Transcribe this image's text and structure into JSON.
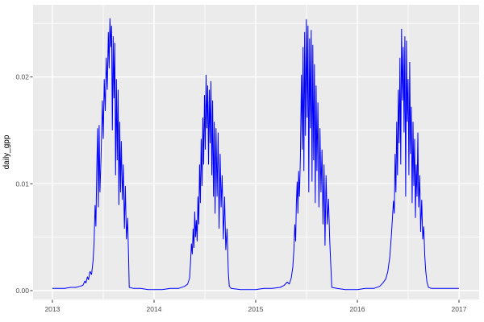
{
  "styles": {
    "outer_bg": "#ffffff",
    "panel_bg": "#ebebeb",
    "grid_color": "#ffffff",
    "line_color": "#0000ff",
    "tick_text_color": "#4d4d4d",
    "axis_title_color": "#000000",
    "tick_mark_color": "#333333"
  },
  "chart_data": {
    "type": "line",
    "title": "",
    "xlabel": "",
    "ylabel": "daily_gpp",
    "theme": "ggplot2-grey",
    "legend": "none",
    "grid": "white major and minor gridlines on grey panel",
    "x_tick_values": [
      2013,
      2014,
      2015,
      2016,
      2017
    ],
    "x_tick_labels": [
      "2013",
      "2014",
      "2015",
      "2016",
      "2017"
    ],
    "x_minor_values": [
      2013.5,
      2014.5,
      2015.5,
      2016.5
    ],
    "y_tick_values": [
      0.0,
      0.01,
      0.02
    ],
    "y_tick_labels": [
      "0.00",
      "0.01",
      "0.02"
    ],
    "y_minor_values": [
      0.005,
      0.015,
      0.025
    ],
    "xlim": [
      2012.81,
      2017.198
    ],
    "ylim": [
      -0.00083,
      0.02675
    ],
    "series": [
      {
        "name": "daily_gpp",
        "color": "#0000ff",
        "points": [
          [
            2013.0,
            0.0002
          ],
          [
            2013.06,
            0.0002
          ],
          [
            2013.12,
            0.0002
          ],
          [
            2013.18,
            0.0003
          ],
          [
            2013.23,
            0.0003
          ],
          [
            2013.27,
            0.0004
          ],
          [
            2013.3,
            0.0005
          ],
          [
            2013.32,
            0.0009
          ],
          [
            2013.33,
            0.0007
          ],
          [
            2013.345,
            0.0013
          ],
          [
            2013.355,
            0.001
          ],
          [
            2013.37,
            0.0018
          ],
          [
            2013.385,
            0.0015
          ],
          [
            2013.4,
            0.0028
          ],
          [
            2013.41,
            0.0045
          ],
          [
            2013.42,
            0.008
          ],
          [
            2013.428,
            0.006
          ],
          [
            2013.437,
            0.0115
          ],
          [
            2013.445,
            0.0152
          ],
          [
            2013.452,
            0.0078
          ],
          [
            2013.46,
            0.0155
          ],
          [
            2013.468,
            0.0092
          ],
          [
            2013.48,
            0.0128
          ],
          [
            2013.492,
            0.0178
          ],
          [
            2013.5,
            0.0142
          ],
          [
            2013.51,
            0.0198
          ],
          [
            2013.52,
            0.0168
          ],
          [
            2013.53,
            0.0218
          ],
          [
            2013.54,
            0.0188
          ],
          [
            2013.55,
            0.0242
          ],
          [
            2013.558,
            0.0208
          ],
          [
            2013.566,
            0.0255
          ],
          [
            2013.574,
            0.0228
          ],
          [
            2013.582,
            0.0248
          ],
          [
            2013.59,
            0.015
          ],
          [
            2013.598,
            0.0238
          ],
          [
            2013.606,
            0.018
          ],
          [
            2013.614,
            0.0232
          ],
          [
            2013.622,
            0.0108
          ],
          [
            2013.63,
            0.0198
          ],
          [
            2013.638,
            0.0122
          ],
          [
            2013.646,
            0.0188
          ],
          [
            2013.654,
            0.008
          ],
          [
            2013.662,
            0.0158
          ],
          [
            2013.67,
            0.0092
          ],
          [
            2013.678,
            0.014
          ],
          [
            2013.688,
            0.0085
          ],
          [
            2013.698,
            0.0118
          ],
          [
            2013.708,
            0.0058
          ],
          [
            2013.718,
            0.0098
          ],
          [
            2013.728,
            0.0048
          ],
          [
            2013.74,
            0.0068
          ],
          [
            2013.75,
            0.0028
          ],
          [
            2013.756,
            0.0003
          ],
          [
            2013.8,
            0.0002
          ],
          [
            2013.87,
            0.0002
          ],
          [
            2013.94,
            0.0001
          ],
          [
            2014.0,
            0.0001
          ],
          [
            2014.08,
            0.0001
          ],
          [
            2014.16,
            0.0002
          ],
          [
            2014.24,
            0.0002
          ],
          [
            2014.3,
            0.0004
          ],
          [
            2014.33,
            0.0006
          ],
          [
            2014.35,
            0.0012
          ],
          [
            2014.36,
            0.0028
          ],
          [
            2014.368,
            0.0044
          ],
          [
            2014.376,
            0.0034
          ],
          [
            2014.384,
            0.0058
          ],
          [
            2014.392,
            0.004
          ],
          [
            2014.4,
            0.0074
          ],
          [
            2014.408,
            0.005
          ],
          [
            2014.416,
            0.0066
          ],
          [
            2014.424,
            0.0046
          ],
          [
            2014.432,
            0.0088
          ],
          [
            2014.44,
            0.0062
          ],
          [
            2014.448,
            0.0118
          ],
          [
            2014.456,
            0.0082
          ],
          [
            2014.464,
            0.0142
          ],
          [
            2014.472,
            0.0098
          ],
          [
            2014.48,
            0.0162
          ],
          [
            2014.488,
            0.0118
          ],
          [
            2014.496,
            0.0183
          ],
          [
            2014.504,
            0.0132
          ],
          [
            2014.512,
            0.0202
          ],
          [
            2014.52,
            0.0152
          ],
          [
            2014.528,
            0.0192
          ],
          [
            2014.536,
            0.0118
          ],
          [
            2014.544,
            0.0188
          ],
          [
            2014.552,
            0.0138
          ],
          [
            2014.56,
            0.0196
          ],
          [
            2014.568,
            0.0108
          ],
          [
            2014.576,
            0.0178
          ],
          [
            2014.584,
            0.0088
          ],
          [
            2014.592,
            0.0158
          ],
          [
            2014.6,
            0.0072
          ],
          [
            2014.61,
            0.0152
          ],
          [
            2014.62,
            0.0088
          ],
          [
            2014.63,
            0.0148
          ],
          [
            2014.64,
            0.0058
          ],
          [
            2014.65,
            0.0128
          ],
          [
            2014.66,
            0.0078
          ],
          [
            2014.67,
            0.0108
          ],
          [
            2014.682,
            0.0048
          ],
          [
            2014.694,
            0.0088
          ],
          [
            2014.706,
            0.0038
          ],
          [
            2014.718,
            0.0058
          ],
          [
            2014.73,
            0.0018
          ],
          [
            2014.74,
            0.0004
          ],
          [
            2014.76,
            0.0002
          ],
          [
            2014.85,
            0.0001
          ],
          [
            2014.94,
            0.0001
          ],
          [
            2015.0,
            0.0001
          ],
          [
            2015.08,
            0.0002
          ],
          [
            2015.16,
            0.0002
          ],
          [
            2015.24,
            0.0003
          ],
          [
            2015.28,
            0.0005
          ],
          [
            2015.31,
            0.0008
          ],
          [
            2015.33,
            0.0006
          ],
          [
            2015.35,
            0.0012
          ],
          [
            2015.365,
            0.0022
          ],
          [
            2015.375,
            0.0038
          ],
          [
            2015.385,
            0.0062
          ],
          [
            2015.393,
            0.0046
          ],
          [
            2015.4,
            0.0082
          ],
          [
            2015.408,
            0.0102
          ],
          [
            2015.415,
            0.0072
          ],
          [
            2015.422,
            0.0112
          ],
          [
            2015.43,
            0.0088
          ],
          [
            2015.44,
            0.0125
          ],
          [
            2015.45,
            0.0202
          ],
          [
            2015.458,
            0.0132
          ],
          [
            2015.466,
            0.0228
          ],
          [
            2015.474,
            0.0112
          ],
          [
            2015.482,
            0.0242
          ],
          [
            2015.49,
            0.0145
          ],
          [
            2015.498,
            0.0254
          ],
          [
            2015.506,
            0.0162
          ],
          [
            2015.514,
            0.0248
          ],
          [
            2015.522,
            0.0092
          ],
          [
            2015.53,
            0.0236
          ],
          [
            2015.538,
            0.0152
          ],
          [
            2015.546,
            0.0244
          ],
          [
            2015.554,
            0.0102
          ],
          [
            2015.562,
            0.023
          ],
          [
            2015.57,
            0.0122
          ],
          [
            2015.578,
            0.0212
          ],
          [
            2015.586,
            0.0082
          ],
          [
            2015.594,
            0.0192
          ],
          [
            2015.602,
            0.0112
          ],
          [
            2015.612,
            0.0176
          ],
          [
            2015.622,
            0.0078
          ],
          [
            2015.632,
            0.0152
          ],
          [
            2015.642,
            0.0092
          ],
          [
            2015.652,
            0.0132
          ],
          [
            2015.662,
            0.0062
          ],
          [
            2015.672,
            0.0118
          ],
          [
            2015.682,
            0.0042
          ],
          [
            2015.692,
            0.0108
          ],
          [
            2015.704,
            0.0062
          ],
          [
            2015.716,
            0.0086
          ],
          [
            2015.728,
            0.0048
          ],
          [
            2015.74,
            0.002
          ],
          [
            2015.748,
            0.0003
          ],
          [
            2015.8,
            0.0002
          ],
          [
            2015.88,
            0.0001
          ],
          [
            2015.96,
            0.0001
          ],
          [
            2016.0,
            0.0001
          ],
          [
            2016.08,
            0.0002
          ],
          [
            2016.16,
            0.0002
          ],
          [
            2016.22,
            0.0004
          ],
          [
            2016.25,
            0.0007
          ],
          [
            2016.28,
            0.0011
          ],
          [
            2016.3,
            0.0018
          ],
          [
            2016.32,
            0.0032
          ],
          [
            2016.335,
            0.0052
          ],
          [
            2016.345,
            0.0068
          ],
          [
            2016.355,
            0.0084
          ],
          [
            2016.363,
            0.0072
          ],
          [
            2016.371,
            0.0128
          ],
          [
            2016.379,
            0.0092
          ],
          [
            2016.387,
            0.0158
          ],
          [
            2016.395,
            0.0108
          ],
          [
            2016.403,
            0.0188
          ],
          [
            2016.411,
            0.0138
          ],
          [
            2016.419,
            0.0218
          ],
          [
            2016.427,
            0.0118
          ],
          [
            2016.435,
            0.0245
          ],
          [
            2016.443,
            0.0178
          ],
          [
            2016.451,
            0.0228
          ],
          [
            2016.459,
            0.0148
          ],
          [
            2016.467,
            0.0238
          ],
          [
            2016.475,
            0.0088
          ],
          [
            2016.483,
            0.0234
          ],
          [
            2016.491,
            0.0158
          ],
          [
            2016.499,
            0.0198
          ],
          [
            2016.507,
            0.0108
          ],
          [
            2016.515,
            0.0214
          ],
          [
            2016.523,
            0.0128
          ],
          [
            2016.531,
            0.0172
          ],
          [
            2016.539,
            0.0082
          ],
          [
            2016.547,
            0.0158
          ],
          [
            2016.555,
            0.0098
          ],
          [
            2016.563,
            0.0142
          ],
          [
            2016.571,
            0.0068
          ],
          [
            2016.579,
            0.0118
          ],
          [
            2016.587,
            0.0088
          ],
          [
            2016.595,
            0.0148
          ],
          [
            2016.603,
            0.0078
          ],
          [
            2016.613,
            0.0108
          ],
          [
            2016.623,
            0.0055
          ],
          [
            2016.633,
            0.0085
          ],
          [
            2016.643,
            0.0048
          ],
          [
            2016.653,
            0.006
          ],
          [
            2016.663,
            0.0032
          ],
          [
            2016.673,
            0.0018
          ],
          [
            2016.685,
            0.0008
          ],
          [
            2016.7,
            0.0003
          ],
          [
            2016.73,
            0.0002
          ],
          [
            2016.8,
            0.0002
          ],
          [
            2016.9,
            0.0002
          ],
          [
            2016.999,
            0.0002
          ]
        ]
      }
    ]
  }
}
